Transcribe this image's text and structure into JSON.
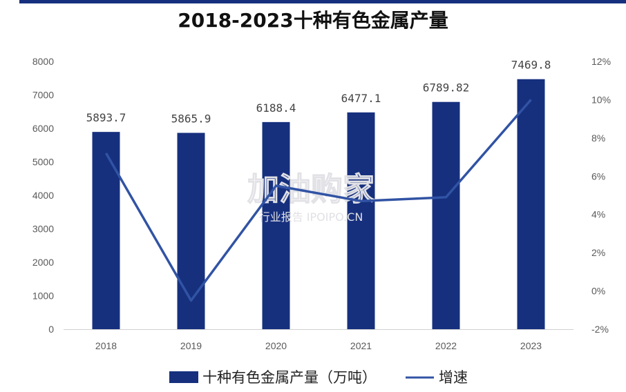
{
  "chart_data": {
    "type": "bar",
    "title": "2018-2023十种有色金属产量",
    "categories": [
      "2018",
      "2019",
      "2020",
      "2021",
      "2022",
      "2023"
    ],
    "series": [
      {
        "name": "十种有色金属产量（万吨）",
        "type": "bar",
        "axis": "left",
        "values": [
          5893.7,
          5865.9,
          6188.4,
          6477.1,
          6789.82,
          7469.8
        ],
        "labels": [
          "5893.7",
          "5865.9",
          "6188.4",
          "6477.1",
          "6789.82",
          "7469.8"
        ]
      },
      {
        "name": "增速",
        "type": "line",
        "axis": "right",
        "values": [
          7.2,
          -0.5,
          5.5,
          4.7,
          4.9,
          10.0
        ]
      }
    ],
    "y_left": {
      "min": 0,
      "max": 8000,
      "ticks": [
        "0",
        "1000",
        "2000",
        "3000",
        "4000",
        "5000",
        "6000",
        "7000",
        "8000"
      ]
    },
    "y_right": {
      "min": -2,
      "max": 12,
      "ticks": [
        "-2%",
        "0%",
        "2%",
        "4%",
        "6%",
        "8%",
        "10%",
        "12%"
      ]
    },
    "grid": false,
    "legend_position": "bottom",
    "colors": {
      "bar": "#16307e",
      "line": "#3153a4"
    }
  },
  "watermark": {
    "big": "加油购家",
    "small": "行业报告 IPOIPO.CN"
  }
}
